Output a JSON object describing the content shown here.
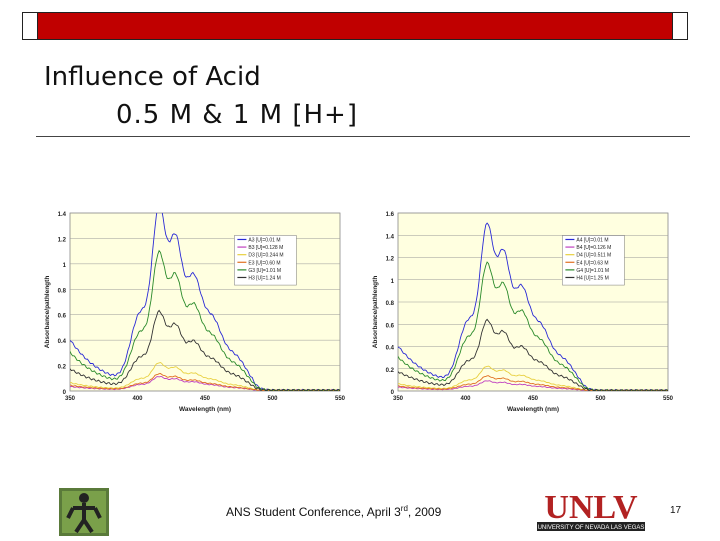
{
  "slide": {
    "title_line1": "Influence of Acid",
    "title_line2": "0.5 M & 1 M [H+]",
    "footer_prefix": "ANS Student Conference, April 3",
    "footer_sup": "rd",
    "footer_suffix": ", 2009",
    "page_number": "17",
    "logo_text": "UNLV",
    "logo_subtext": "UNIVERSITY OF NEVADA LAS VEGAS",
    "accent_color": "#c00000"
  },
  "chart_data": [
    {
      "type": "line",
      "xlabel": "Wavelength (nm)",
      "ylabel": "Absorbance/pathlength",
      "xlim": [
        350,
        550
      ],
      "ylim": [
        0,
        1.4
      ],
      "xticks": [
        "350",
        "400",
        "450",
        "500",
        "550"
      ],
      "yticks": [
        "0",
        "0.2",
        "0.4",
        "0.6",
        "0.8",
        "1",
        "1.2",
        "1.4"
      ],
      "grid": true,
      "legend_position": "top-right",
      "series": [
        {
          "name": "A3 [U]=0.01 M",
          "color": "#2a2ad6",
          "peak": 1.34,
          "base": 0.4
        },
        {
          "name": "B3 [U]=0.128 M",
          "color": "#c040c0",
          "peak": 0.1,
          "base": 0.03
        },
        {
          "name": "D3 [U]=0.244 M",
          "color": "#e8d040",
          "peak": 0.2,
          "base": 0.06
        },
        {
          "name": "E3 [U]=0.60 M",
          "color": "#e07020",
          "peak": 0.12,
          "base": 0.04
        },
        {
          "name": "G3 [U]=1.01 M",
          "color": "#2a8a2a",
          "peak": 1.0,
          "base": 0.3
        },
        {
          "name": "H3 [U]=1.24 M",
          "color": "#333333",
          "peak": 0.57,
          "base": 0.17
        }
      ]
    },
    {
      "type": "line",
      "xlabel": "Wavelength (nm)",
      "ylabel": "Absorbance/pathlength",
      "xlim": [
        350,
        550
      ],
      "ylim": [
        0,
        1.6
      ],
      "xticks": [
        "350",
        "400",
        "450",
        "500",
        "550"
      ],
      "yticks": [
        "0",
        "0.2",
        "0.4",
        "0.6",
        "0.8",
        "1",
        "1.2",
        "1.4",
        "1.6"
      ],
      "grid": true,
      "legend_position": "top-right",
      "series": [
        {
          "name": "A4 [U]=0.01 M",
          "color": "#2a2ad6",
          "peak": 1.38,
          "base": 0.4
        },
        {
          "name": "B4 [U]=0.126 M",
          "color": "#c040c0",
          "peak": 0.08,
          "base": 0.03
        },
        {
          "name": "D4 [U]=0.511 M",
          "color": "#e8d040",
          "peak": 0.2,
          "base": 0.06
        },
        {
          "name": "E4 [U]=0.63 M",
          "color": "#e07020",
          "peak": 0.12,
          "base": 0.04
        },
        {
          "name": "G4 [U]=1.01 M",
          "color": "#2a8a2a",
          "peak": 1.05,
          "base": 0.3
        },
        {
          "name": "H4 [U]=1.25 M",
          "color": "#333333",
          "peak": 0.58,
          "base": 0.17
        }
      ]
    }
  ]
}
